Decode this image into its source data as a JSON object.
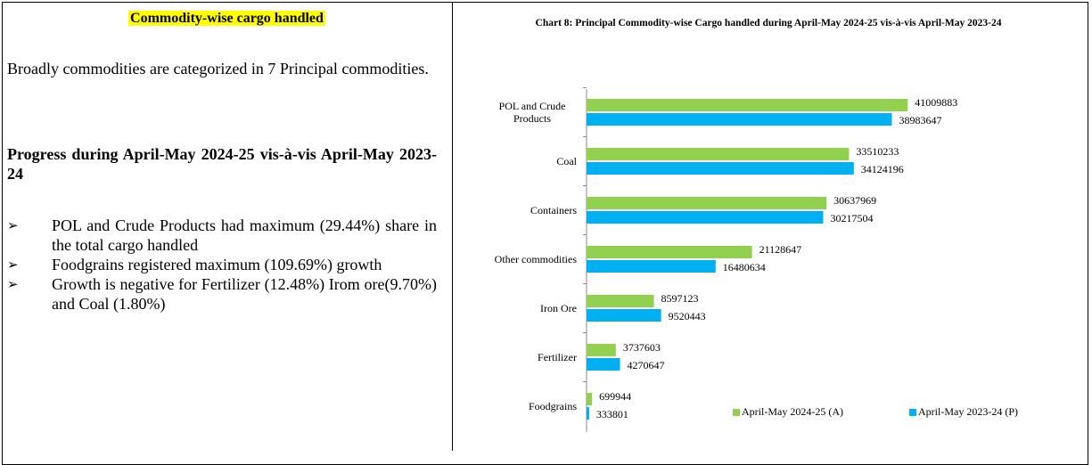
{
  "left": {
    "heading": "Commodity-wise cargo handled",
    "intro": "Broadly commodities are categorized in 7 Principal commodities.",
    "subheading": "Progress during April-May 2024-25 vis-à-vis April-May 2023-24",
    "bullets": [
      "POL and Crude Products had maximum (29.44%) share in the total cargo handled",
      "Foodgrains registered maximum (109.69%) growth",
      "Growth is negative for Fertilizer (12.48%) Irom ore(9.70%) and Coal (1.80%)"
    ]
  },
  "chart_data": {
    "type": "bar",
    "orientation": "horizontal",
    "title": "Chart 8: Principal Commodity-wise Cargo handled  during April-May 2024-25 vis-à-vis April-May 2023-24",
    "categories": [
      "POL and Crude Products",
      "Coal",
      "Containers",
      "Other commodities",
      "Iron Ore",
      "Fertilizer",
      "Foodgrains"
    ],
    "series": [
      {
        "name": "April-May 2024-25 (A)",
        "color": "#92d050",
        "values": [
          41009883,
          33510233,
          30637969,
          21128647,
          8597123,
          3737603,
          699944
        ]
      },
      {
        "name": "April-May 2023-24 (P)",
        "color": "#00b0f0",
        "values": [
          38983647,
          34124196,
          30217504,
          16480634,
          9520443,
          4270647,
          333801
        ]
      }
    ],
    "xlim": [
      0,
      42000000
    ],
    "legend": "lower right"
  }
}
